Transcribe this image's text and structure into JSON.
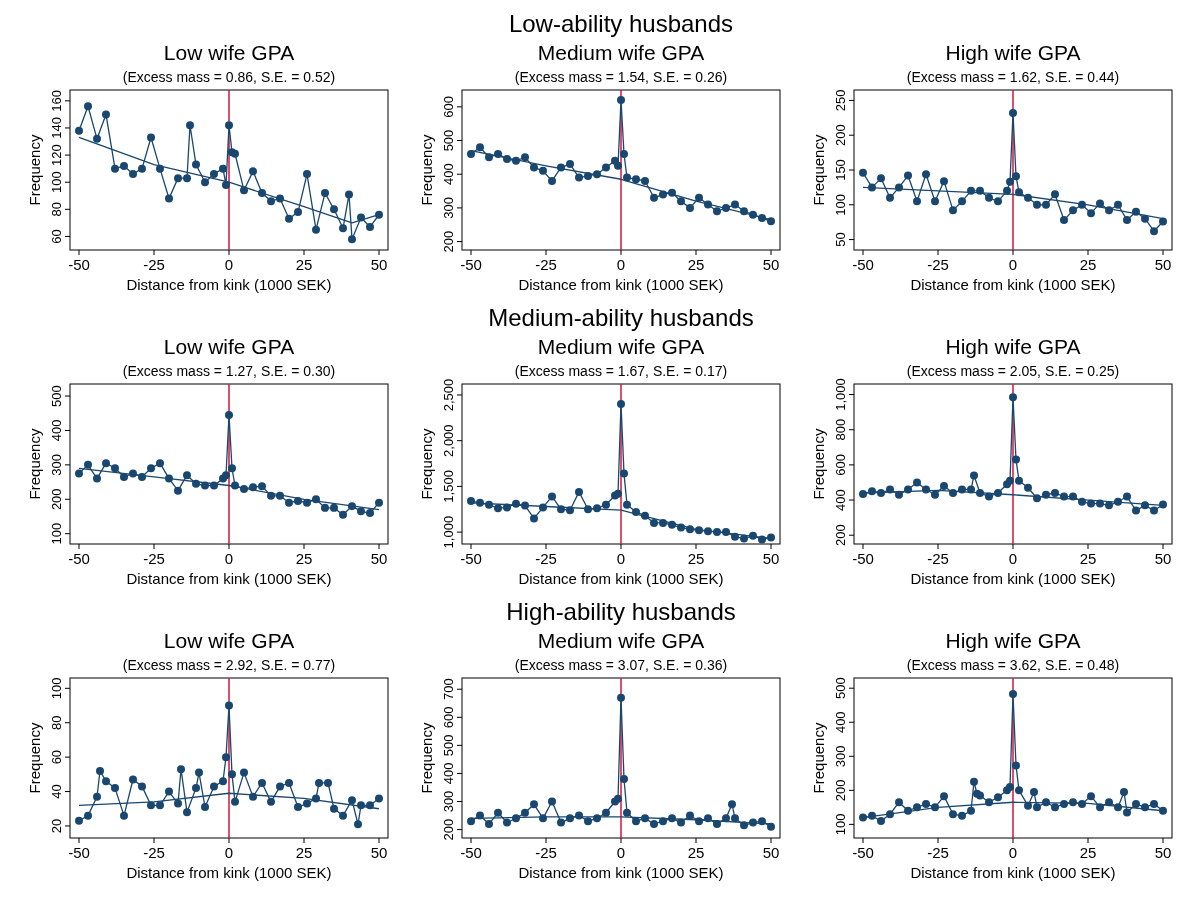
{
  "chart_data": [
    {
      "type": "line",
      "title": "Low wife GPA",
      "subtitle": "(Excess mass = 0.86, S.E. = 0.52)",
      "xlabel": "Distance from kink (1000 SEK)",
      "ylabel": "Frequency",
      "xlim": [
        -53,
        53
      ],
      "xticks": [
        -50,
        -25,
        0,
        25,
        50
      ],
      "ylim": [
        50,
        168
      ],
      "yticks": [
        60,
        80,
        100,
        120,
        140,
        160
      ],
      "ref_lines": [
        {
          "axis": "x",
          "value": 0,
          "color": "#d4143c"
        }
      ],
      "series": [
        {
          "color": "#1a476f",
          "marker": "circle",
          "x": [
            -50,
            -47,
            -44,
            -41,
            -38,
            -35,
            -32,
            -29,
            -26,
            -23,
            -20,
            -17,
            -14,
            -13,
            -11,
            -8,
            -5,
            -2,
            -1,
            0,
            1,
            2,
            5,
            8,
            11,
            14,
            17,
            20,
            23,
            26,
            29,
            32,
            35,
            38,
            40,
            41,
            44,
            47,
            50
          ],
          "values": [
            138,
            156,
            132,
            150,
            110,
            112,
            106,
            110,
            133,
            110,
            88,
            103,
            103,
            142,
            113,
            100,
            106,
            110,
            98,
            142,
            122,
            121,
            94,
            108,
            92,
            86,
            88,
            73,
            78,
            106,
            65,
            92,
            80,
            66,
            91,
            58,
            74,
            67,
            76
          ]
        },
        {
          "color": "#1a476f",
          "marker": "none",
          "x": [
            -50,
            -25,
            0,
            25,
            41,
            50
          ],
          "values": [
            133,
            113,
            100,
            82,
            70,
            76
          ]
        }
      ]
    },
    {
      "type": "line",
      "title": "Medium wife GPA",
      "subtitle": "(Excess mass = 1.54, S.E. = 0.26)",
      "xlabel": "Distance from kink (1000 SEK)",
      "ylabel": "Frequency",
      "annotations": [
        "Low-ability husbands"
      ],
      "xlim": [
        -53,
        53
      ],
      "xticks": [
        -50,
        -25,
        0,
        25,
        50
      ],
      "ylim": [
        175,
        650
      ],
      "yticks": [
        200,
        300,
        400,
        500,
        600
      ],
      "ref_lines": [
        {
          "axis": "x",
          "value": 0,
          "color": "#d4143c"
        }
      ],
      "series": [
        {
          "color": "#1a476f",
          "marker": "circle",
          "x": [
            -50,
            -47,
            -44,
            -41,
            -38,
            -35,
            -32,
            -29,
            -26,
            -23,
            -20,
            -17,
            -14,
            -11,
            -8,
            -5,
            -2,
            -1,
            0,
            1,
            2,
            5,
            8,
            11,
            14,
            17,
            20,
            23,
            26,
            29,
            32,
            35,
            38,
            41,
            44,
            47,
            50
          ],
          "values": [
            460,
            480,
            450,
            460,
            445,
            440,
            450,
            420,
            410,
            380,
            420,
            430,
            390,
            395,
            400,
            420,
            440,
            425,
            620,
            460,
            390,
            385,
            380,
            330,
            340,
            345,
            320,
            300,
            330,
            310,
            290,
            300,
            310,
            290,
            280,
            270,
            260
          ]
        },
        {
          "color": "#1a476f",
          "marker": "none",
          "x": [
            -50,
            -25,
            0,
            25,
            50
          ],
          "values": [
            470,
            425,
            385,
            320,
            265
          ]
        }
      ]
    },
    {
      "type": "line",
      "title": "High wife GPA",
      "subtitle": "(Excess mass = 1.62, S.E. = 0.44)",
      "xlabel": "Distance from kink (1000 SEK)",
      "ylabel": "Frequency",
      "xlim": [
        -53,
        53
      ],
      "xticks": [
        -50,
        -25,
        0,
        25,
        50
      ],
      "ylim": [
        35,
        265
      ],
      "yticks": [
        50,
        100,
        150,
        200,
        250
      ],
      "ref_lines": [
        {
          "axis": "x",
          "value": 0,
          "color": "#d4143c"
        }
      ],
      "series": [
        {
          "color": "#1a476f",
          "marker": "circle",
          "x": [
            -50,
            -47,
            -44,
            -41,
            -38,
            -35,
            -32,
            -29,
            -26,
            -23,
            -20,
            -17,
            -14,
            -11,
            -8,
            -5,
            -2,
            -1,
            0,
            1,
            2,
            5,
            8,
            11,
            14,
            17,
            20,
            23,
            26,
            29,
            32,
            35,
            38,
            41,
            44,
            47,
            50
          ],
          "values": [
            146,
            125,
            138,
            110,
            125,
            142,
            105,
            144,
            105,
            134,
            92,
            105,
            120,
            120,
            110,
            105,
            120,
            133,
            232,
            141,
            118,
            110,
            100,
            100,
            115,
            78,
            92,
            100,
            88,
            102,
            92,
            100,
            78,
            90,
            80,
            62,
            76
          ]
        },
        {
          "color": "#1a476f",
          "marker": "none",
          "x": [
            -50,
            -25,
            0,
            25,
            50
          ],
          "values": [
            125,
            120,
            115,
            100,
            80
          ]
        }
      ]
    },
    {
      "type": "line",
      "title": "Low wife GPA",
      "subtitle": "(Excess mass = 1.27, S.E. = 0.30)",
      "xlabel": "Distance from kink (1000 SEK)",
      "ylabel": "Frequency",
      "xlim": [
        -53,
        53
      ],
      "xticks": [
        -50,
        -25,
        0,
        25,
        50
      ],
      "ylim": [
        70,
        535
      ],
      "yticks": [
        100,
        200,
        300,
        400,
        500
      ],
      "ref_lines": [
        {
          "axis": "x",
          "value": 0,
          "color": "#d4143c"
        }
      ],
      "series": [
        {
          "color": "#1a476f",
          "marker": "circle",
          "x": [
            -50,
            -47,
            -44,
            -41,
            -38,
            -35,
            -32,
            -29,
            -26,
            -23,
            -20,
            -17,
            -14,
            -11,
            -8,
            -5,
            -2,
            -1,
            0,
            1,
            2,
            5,
            8,
            11,
            14,
            17,
            20,
            23,
            26,
            29,
            32,
            35,
            38,
            41,
            44,
            47,
            50
          ],
          "values": [
            275,
            300,
            260,
            305,
            290,
            265,
            275,
            265,
            290,
            305,
            260,
            225,
            270,
            245,
            240,
            240,
            260,
            270,
            445,
            290,
            240,
            230,
            235,
            238,
            210,
            210,
            190,
            195,
            190,
            200,
            175,
            175,
            155,
            180,
            165,
            160,
            190
          ]
        },
        {
          "color": "#1a476f",
          "marker": "none",
          "x": [
            -50,
            -25,
            0,
            25,
            50
          ],
          "values": [
            290,
            265,
            240,
            200,
            170
          ]
        }
      ]
    },
    {
      "type": "line",
      "title": "Medium wife GPA",
      "subtitle": "(Excess mass = 1.67, S.E. = 0.17)",
      "xlabel": "Distance from kink (1000 SEK)",
      "ylabel": "Frequency",
      "annotations": [
        "Medium-ability husbands"
      ],
      "xlim": [
        -53,
        53
      ],
      "xticks": [
        -50,
        -25,
        0,
        25,
        50
      ],
      "ylim": [
        870,
        2620
      ],
      "yticks": [
        {
          "value": 1000,
          "label": "1,000"
        },
        {
          "value": 1500,
          "label": "1,500"
        },
        {
          "value": 2000,
          "label": "2,000"
        },
        {
          "value": 2500,
          "label": "2,500"
        }
      ],
      "ref_lines": [
        {
          "axis": "x",
          "value": 0,
          "color": "#d4143c"
        }
      ],
      "series": [
        {
          "color": "#1a476f",
          "marker": "circle",
          "x": [
            -50,
            -47,
            -44,
            -41,
            -38,
            -35,
            -32,
            -29,
            -26,
            -23,
            -20,
            -17,
            -14,
            -11,
            -8,
            -5,
            -2,
            -1,
            0,
            1,
            2,
            5,
            8,
            11,
            14,
            17,
            20,
            23,
            26,
            29,
            32,
            35,
            38,
            41,
            44,
            47,
            50
          ],
          "values": [
            1340,
            1320,
            1300,
            1260,
            1270,
            1310,
            1290,
            1150,
            1270,
            1390,
            1250,
            1240,
            1440,
            1250,
            1260,
            1300,
            1400,
            1420,
            2400,
            1640,
            1300,
            1220,
            1180,
            1100,
            1100,
            1080,
            1050,
            1030,
            1020,
            1010,
            1000,
            1000,
            950,
            930,
            960,
            920,
            940
          ]
        },
        {
          "color": "#1a476f",
          "marker": "none",
          "x": [
            -50,
            -25,
            0,
            25,
            50
          ],
          "values": [
            1320,
            1280,
            1240,
            1030,
            930
          ]
        }
      ]
    },
    {
      "type": "line",
      "title": "High wife GPA",
      "subtitle": "(Excess mass = 2.05, S.E. = 0.25)",
      "xlabel": "Distance from kink (1000 SEK)",
      "ylabel": "Frequency",
      "xlim": [
        -53,
        53
      ],
      "xticks": [
        -50,
        -25,
        0,
        25,
        50
      ],
      "ylim": [
        150,
        1060
      ],
      "yticks": [
        200,
        400,
        600,
        800,
        {
          "value": 1000,
          "label": "1,000"
        }
      ],
      "ref_lines": [
        {
          "axis": "x",
          "value": 0,
          "color": "#d4143c"
        }
      ],
      "series": [
        {
          "color": "#1a476f",
          "marker": "circle",
          "x": [
            -50,
            -47,
            -44,
            -41,
            -38,
            -35,
            -32,
            -29,
            -26,
            -23,
            -20,
            -17,
            -14,
            -13,
            -11,
            -8,
            -5,
            -2,
            -1,
            0,
            1,
            2,
            5,
            8,
            11,
            14,
            17,
            20,
            23,
            26,
            29,
            32,
            35,
            38,
            41,
            44,
            47,
            50
          ],
          "values": [
            435,
            450,
            440,
            460,
            430,
            460,
            500,
            460,
            430,
            480,
            440,
            460,
            460,
            540,
            440,
            420,
            440,
            490,
            510,
            985,
            630,
            510,
            470,
            410,
            430,
            440,
            420,
            420,
            390,
            380,
            380,
            370,
            390,
            420,
            340,
            370,
            340,
            375
          ]
        },
        {
          "color": "#1a476f",
          "marker": "none",
          "x": [
            -50,
            -25,
            0,
            25,
            50
          ],
          "values": [
            440,
            455,
            430,
            400,
            370
          ]
        }
      ]
    },
    {
      "type": "line",
      "title": "Low wife GPA",
      "subtitle": "(Excess mass = 2.92, S.E. = 0.77)",
      "xlabel": "Distance from kink (1000 SEK)",
      "ylabel": "Frequency",
      "xlim": [
        -53,
        53
      ],
      "xticks": [
        -50,
        -25,
        0,
        25,
        50
      ],
      "ylim": [
        13,
        106
      ],
      "yticks": [
        20,
        40,
        60,
        80,
        100
      ],
      "ref_lines": [
        {
          "axis": "x",
          "value": 0,
          "color": "#d4143c"
        }
      ],
      "series": [
        {
          "color": "#1a476f",
          "marker": "circle",
          "x": [
            -50,
            -47,
            -44,
            -43,
            -41,
            -38,
            -35,
            -32,
            -29,
            -26,
            -23,
            -20,
            -17,
            -16,
            -14,
            -11,
            -10,
            -8,
            -5,
            -2,
            -1,
            0,
            1,
            2,
            5,
            8,
            11,
            14,
            17,
            20,
            23,
            26,
            29,
            30,
            33,
            35,
            38,
            41,
            43,
            44,
            47,
            50
          ],
          "values": [
            23,
            26,
            37,
            52,
            46,
            42,
            26,
            47,
            43,
            32,
            32,
            40,
            33,
            53,
            28,
            42,
            51,
            31,
            43,
            46,
            60,
            90,
            50,
            34,
            51,
            37,
            45,
            34,
            43,
            45,
            31,
            33,
            36,
            45,
            45,
            30,
            26,
            35,
            21,
            32,
            32,
            36
          ]
        },
        {
          "color": "#1a476f",
          "marker": "none",
          "x": [
            -50,
            -25,
            0,
            25,
            50
          ],
          "values": [
            32,
            34,
            39,
            36,
            30
          ]
        }
      ]
    },
    {
      "type": "line",
      "title": "Medium wife GPA",
      "subtitle": "(Excess mass = 3.07, S.E. = 0.36)",
      "xlabel": "Distance from kink (1000 SEK)",
      "ylabel": "Frequency",
      "annotations": [
        "High-ability husbands"
      ],
      "xlim": [
        -53,
        53
      ],
      "xticks": [
        -50,
        -25,
        0,
        25,
        50
      ],
      "ylim": [
        170,
        740
      ],
      "yticks": [
        200,
        300,
        400,
        500,
        600,
        700
      ],
      "ref_lines": [
        {
          "axis": "x",
          "value": 0,
          "color": "#d4143c"
        }
      ],
      "series": [
        {
          "color": "#1a476f",
          "marker": "circle",
          "x": [
            -50,
            -47,
            -44,
            -41,
            -38,
            -35,
            -32,
            -29,
            -26,
            -23,
            -20,
            -17,
            -14,
            -11,
            -8,
            -5,
            -2,
            -1,
            0,
            1,
            2,
            5,
            8,
            11,
            14,
            17,
            20,
            23,
            26,
            29,
            32,
            35,
            37,
            38,
            41,
            44,
            47,
            50
          ],
          "values": [
            230,
            250,
            220,
            260,
            225,
            240,
            260,
            290,
            240,
            300,
            225,
            240,
            250,
            230,
            240,
            260,
            300,
            310,
            670,
            380,
            260,
            230,
            240,
            220,
            230,
            240,
            225,
            250,
            230,
            240,
            220,
            240,
            290,
            240,
            215,
            225,
            230,
            210
          ]
        },
        {
          "color": "#1a476f",
          "marker": "none",
          "x": [
            -50,
            -25,
            0,
            25,
            50
          ],
          "values": [
            240,
            245,
            245,
            235,
            220
          ]
        }
      ]
    },
    {
      "type": "line",
      "title": "High wife GPA",
      "subtitle": "(Excess mass = 3.62, S.E. = 0.48)",
      "xlabel": "Distance from kink (1000 SEK)",
      "ylabel": "Frequency",
      "xlim": [
        -53,
        53
      ],
      "xticks": [
        -50,
        -25,
        0,
        25,
        50
      ],
      "ylim": [
        60,
        530
      ],
      "yticks": [
        100,
        200,
        300,
        400,
        500
      ],
      "ref_lines": [
        {
          "axis": "x",
          "value": 0,
          "color": "#d4143c"
        }
      ],
      "series": [
        {
          "color": "#1a476f",
          "marker": "circle",
          "x": [
            -50,
            -47,
            -44,
            -41,
            -38,
            -35,
            -32,
            -29,
            -26,
            -23,
            -20,
            -17,
            -14,
            -13,
            -12,
            -11,
            -8,
            -5,
            -2,
            -1,
            0,
            1,
            2,
            5,
            7,
            8,
            11,
            14,
            17,
            20,
            23,
            26,
            29,
            32,
            35,
            37,
            38,
            41,
            44,
            47,
            50
          ],
          "values": [
            120,
            125,
            110,
            130,
            165,
            140,
            150,
            160,
            150,
            183,
            130,
            125,
            140,
            225,
            190,
            185,
            165,
            180,
            200,
            210,
            483,
            273,
            200,
            155,
            195,
            150,
            165,
            150,
            160,
            165,
            160,
            183,
            150,
            165,
            150,
            195,
            135,
            160,
            150,
            160,
            140
          ]
        },
        {
          "color": "#1a476f",
          "marker": "none",
          "x": [
            -50,
            -25,
            0,
            25,
            50
          ],
          "values": [
            120,
            150,
            165,
            162,
            140
          ]
        }
      ]
    }
  ]
}
